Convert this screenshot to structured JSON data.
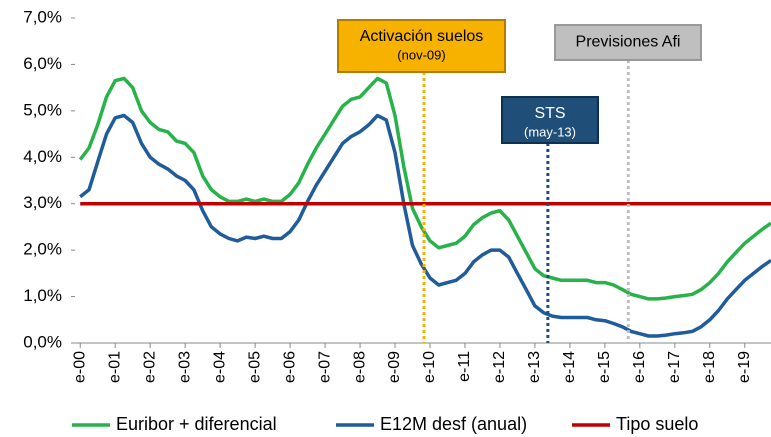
{
  "chart_data": {
    "type": "line",
    "x": [
      2000,
      2000.25,
      2000.5,
      2000.75,
      2001,
      2001.25,
      2001.5,
      2001.75,
      2002,
      2002.25,
      2002.5,
      2002.75,
      2003,
      2003.25,
      2003.5,
      2003.75,
      2004,
      2004.25,
      2004.5,
      2004.75,
      2005,
      2005.25,
      2005.5,
      2005.75,
      2006,
      2006.25,
      2006.5,
      2006.75,
      2007,
      2007.25,
      2007.5,
      2007.75,
      2008,
      2008.25,
      2008.5,
      2008.75,
      2009,
      2009.25,
      2009.5,
      2009.75,
      2010,
      2010.25,
      2010.5,
      2010.75,
      2011,
      2011.25,
      2011.5,
      2011.75,
      2012,
      2012.25,
      2012.5,
      2012.75,
      2013,
      2013.25,
      2013.5,
      2013.75,
      2014,
      2014.25,
      2014.5,
      2014.75,
      2015,
      2015.25,
      2015.5,
      2015.75,
      2016,
      2016.25,
      2016.5,
      2016.75,
      2017,
      2017.25,
      2017.5,
      2017.75,
      2018,
      2018.25,
      2018.5,
      2018.75,
      2019,
      2019.25,
      2019.5,
      2019.75
    ],
    "series": [
      {
        "name": "Euribor + diferencial",
        "color": "#27b24a",
        "values": [
          3.95,
          4.2,
          4.7,
          5.3,
          5.65,
          5.7,
          5.5,
          5.0,
          4.75,
          4.6,
          4.55,
          4.35,
          4.3,
          4.1,
          3.6,
          3.3,
          3.15,
          3.05,
          3.05,
          3.1,
          3.05,
          3.1,
          3.05,
          3.05,
          3.2,
          3.45,
          3.85,
          4.2,
          4.5,
          4.8,
          5.1,
          5.25,
          5.3,
          5.5,
          5.7,
          5.6,
          4.9,
          3.8,
          2.9,
          2.5,
          2.2,
          2.05,
          2.1,
          2.15,
          2.3,
          2.55,
          2.7,
          2.8,
          2.85,
          2.65,
          2.3,
          1.95,
          1.6,
          1.45,
          1.4,
          1.35,
          1.35,
          1.35,
          1.35,
          1.3,
          1.3,
          1.25,
          1.15,
          1.05,
          1.0,
          0.95,
          0.95,
          0.97,
          1.0,
          1.02,
          1.05,
          1.15,
          1.3,
          1.5,
          1.75,
          1.95,
          2.15,
          2.3,
          2.45,
          2.58
        ]
      },
      {
        "name": "E12M desf (anual)",
        "color": "#1f5c99",
        "values": [
          3.15,
          3.3,
          3.9,
          4.5,
          4.85,
          4.9,
          4.75,
          4.3,
          4.0,
          3.85,
          3.75,
          3.6,
          3.5,
          3.3,
          2.85,
          2.5,
          2.35,
          2.25,
          2.2,
          2.28,
          2.25,
          2.3,
          2.25,
          2.25,
          2.4,
          2.65,
          3.05,
          3.4,
          3.7,
          4.0,
          4.3,
          4.45,
          4.55,
          4.7,
          4.9,
          4.8,
          4.1,
          3.0,
          2.1,
          1.7,
          1.4,
          1.25,
          1.3,
          1.35,
          1.5,
          1.75,
          1.9,
          2.0,
          2.0,
          1.85,
          1.5,
          1.15,
          0.8,
          0.65,
          0.58,
          0.55,
          0.55,
          0.55,
          0.55,
          0.5,
          0.48,
          0.42,
          0.35,
          0.25,
          0.2,
          0.15,
          0.15,
          0.17,
          0.2,
          0.22,
          0.25,
          0.35,
          0.5,
          0.7,
          0.95,
          1.15,
          1.35,
          1.5,
          1.65,
          1.78
        ]
      },
      {
        "name": "Tipo suelo",
        "color": "#c00000",
        "values": [
          3,
          3,
          3,
          3,
          3,
          3,
          3,
          3,
          3,
          3,
          3,
          3,
          3,
          3,
          3,
          3,
          3,
          3,
          3,
          3,
          3,
          3,
          3,
          3,
          3,
          3,
          3,
          3,
          3,
          3,
          3,
          3,
          3,
          3,
          3,
          3,
          3,
          3,
          3,
          3,
          3,
          3,
          3,
          3,
          3,
          3,
          3,
          3,
          3,
          3,
          3,
          3,
          3,
          3,
          3,
          3,
          3,
          3,
          3,
          3,
          3,
          3,
          3,
          3,
          3,
          3,
          3,
          3,
          3,
          3,
          3,
          3,
          3,
          3,
          3,
          3,
          3,
          3,
          3,
          3
        ]
      }
    ],
    "xlim": [
      1999.85,
      2019.75
    ],
    "xticks": [
      {
        "value": 2000,
        "label": "e-00"
      },
      {
        "value": 2001,
        "label": "e-01"
      },
      {
        "value": 2002,
        "label": "e-02"
      },
      {
        "value": 2003,
        "label": "e-03"
      },
      {
        "value": 2004,
        "label": "e-04"
      },
      {
        "value": 2005,
        "label": "e-05"
      },
      {
        "value": 2006,
        "label": "e-06"
      },
      {
        "value": 2007,
        "label": "e-07"
      },
      {
        "value": 2008,
        "label": "e-08"
      },
      {
        "value": 2009,
        "label": "e-09"
      },
      {
        "value": 2010,
        "label": "e-10"
      },
      {
        "value": 2011,
        "label": "e-11"
      },
      {
        "value": 2012,
        "label": "e-12"
      },
      {
        "value": 2013,
        "label": "e-13"
      },
      {
        "value": 2014,
        "label": "e-14"
      },
      {
        "value": 2015,
        "label": "e-15"
      },
      {
        "value": 2016,
        "label": "e-16"
      },
      {
        "value": 2017,
        "label": "e-17"
      },
      {
        "value": 2018,
        "label": "e-18"
      },
      {
        "value": 2019,
        "label": "e-19"
      }
    ],
    "ylim": [
      0,
      7
    ],
    "yticks": [
      {
        "value": 0,
        "label": "0,0%"
      },
      {
        "value": 1,
        "label": "1,0%"
      },
      {
        "value": 2,
        "label": "2,0%"
      },
      {
        "value": 3,
        "label": "3,0%"
      },
      {
        "value": 4,
        "label": "4,0%"
      },
      {
        "value": 5,
        "label": "5,0%"
      },
      {
        "value": 6,
        "label": "6,0%"
      },
      {
        "value": 7,
        "label": "7,0%"
      }
    ],
    "annotations": [
      {
        "label": "Activación suelos",
        "sublabel": "(nov-09)",
        "x": 2009.83,
        "color": "#f7b200"
      },
      {
        "label": "STS",
        "sublabel": "(may-13)",
        "x": 2013.37,
        "color": "#1f4e79"
      },
      {
        "label": "Previsiones Afi",
        "x": 2015.67,
        "color": "#bfbfbf"
      }
    ]
  }
}
